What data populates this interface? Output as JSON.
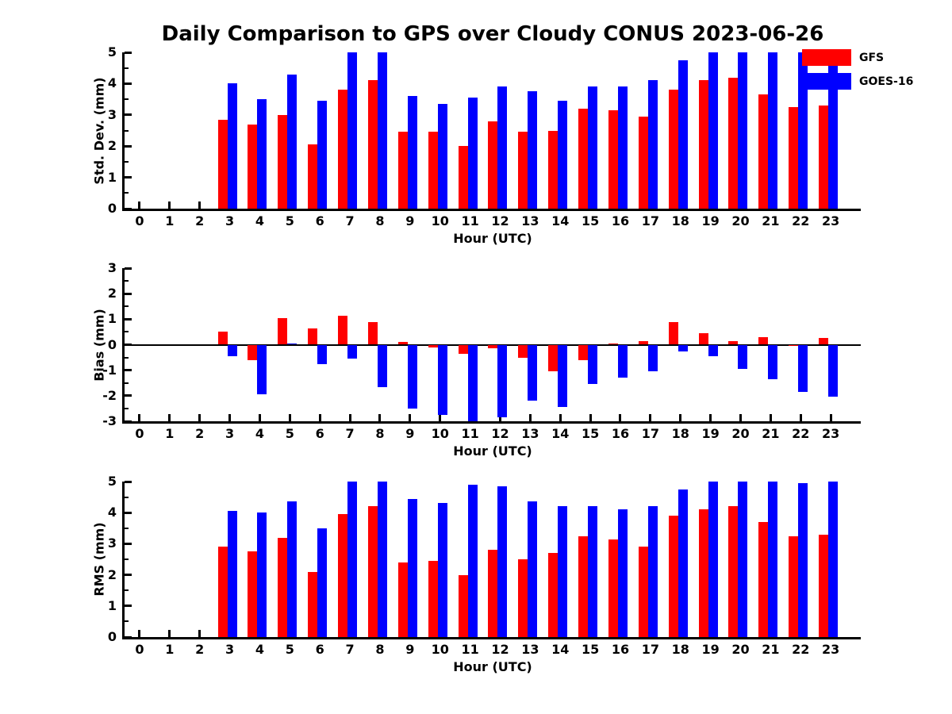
{
  "title": "Daily Comparison to GPS over Cloudy CONUS 2023-06-26",
  "legend": {
    "items": [
      {
        "label": "GFS",
        "color": "#ff0000"
      },
      {
        "label": "GOES-16",
        "color": "#0000ff"
      }
    ]
  },
  "colors": {
    "gfs": "#ff0000",
    "goes16": "#0000ff",
    "axis": "#000000",
    "background": "#ffffff"
  },
  "chart_data": [
    {
      "type": "bar",
      "panel": "std_dev",
      "ylabel": "Std. Dev. (mm)",
      "xlabel": "Hour (UTC)",
      "ylim": [
        0,
        5
      ],
      "yticks": [
        0,
        1,
        2,
        3,
        4,
        5
      ],
      "grid": false,
      "legend_position": "upper-right-outside-plot",
      "categories": [
        0,
        1,
        2,
        3,
        4,
        5,
        6,
        7,
        8,
        9,
        10,
        11,
        12,
        13,
        14,
        15,
        16,
        17,
        18,
        19,
        20,
        21,
        22,
        23
      ],
      "series": [
        {
          "name": "GFS",
          "color": "#ff0000",
          "values": [
            null,
            null,
            null,
            2.85,
            2.7,
            3.0,
            2.05,
            3.8,
            4.1,
            2.45,
            2.45,
            2.0,
            2.8,
            2.45,
            2.5,
            3.2,
            3.15,
            2.95,
            3.8,
            4.1,
            4.2,
            3.65,
            3.25,
            3.3
          ]
        },
        {
          "name": "GOES-16",
          "color": "#0000ff",
          "values": [
            null,
            null,
            null,
            4.0,
            3.5,
            4.3,
            3.45,
            5.0,
            5.0,
            3.6,
            3.35,
            3.55,
            3.9,
            3.75,
            3.45,
            3.9,
            3.9,
            4.1,
            4.75,
            5.0,
            5.0,
            5.0,
            5.0,
            5.0
          ]
        }
      ]
    },
    {
      "type": "bar",
      "panel": "bias",
      "ylabel": "Bias (mm)",
      "xlabel": "Hour (UTC)",
      "ylim": [
        -3,
        3
      ],
      "yticks": [
        3,
        2,
        1,
        0,
        -1,
        -2,
        -3
      ],
      "grid": false,
      "zero_line": true,
      "categories": [
        0,
        1,
        2,
        3,
        4,
        5,
        6,
        7,
        8,
        9,
        10,
        11,
        12,
        13,
        14,
        15,
        16,
        17,
        18,
        19,
        20,
        21,
        22,
        23
      ],
      "series": [
        {
          "name": "GFS",
          "color": "#ff0000",
          "values": [
            null,
            null,
            null,
            0.5,
            -0.6,
            1.05,
            0.65,
            1.15,
            0.9,
            0.1,
            -0.1,
            -0.35,
            -0.15,
            -0.5,
            -1.05,
            -0.6,
            0.05,
            0.15,
            0.9,
            0.45,
            0.15,
            0.3,
            -0.05,
            0.25
          ]
        },
        {
          "name": "GOES-16",
          "color": "#0000ff",
          "values": [
            null,
            null,
            null,
            -0.45,
            -1.95,
            0.05,
            -0.75,
            -0.55,
            -1.65,
            -2.5,
            -2.75,
            -3.0,
            -2.85,
            -2.2,
            -2.45,
            -1.55,
            -1.3,
            -1.05,
            -0.25,
            -0.45,
            -0.95,
            -1.35,
            -1.85,
            -2.05
          ]
        }
      ]
    },
    {
      "type": "bar",
      "panel": "rms",
      "ylabel": "RMS (mm)",
      "xlabel": "Hour (UTC)",
      "ylim": [
        0,
        5
      ],
      "yticks": [
        0,
        1,
        2,
        3,
        4,
        5
      ],
      "grid": false,
      "categories": [
        0,
        1,
        2,
        3,
        4,
        5,
        6,
        7,
        8,
        9,
        10,
        11,
        12,
        13,
        14,
        15,
        16,
        17,
        18,
        19,
        20,
        21,
        22,
        23
      ],
      "series": [
        {
          "name": "GFS",
          "color": "#ff0000",
          "values": [
            null,
            null,
            null,
            2.9,
            2.75,
            3.2,
            2.1,
            3.95,
            4.2,
            2.4,
            2.45,
            2.0,
            2.8,
            2.5,
            2.7,
            3.25,
            3.15,
            2.9,
            3.9,
            4.1,
            4.2,
            3.7,
            3.25,
            3.3
          ]
        },
        {
          "name": "GOES-16",
          "color": "#0000ff",
          "values": [
            null,
            null,
            null,
            4.05,
            4.0,
            4.35,
            3.5,
            5.0,
            5.0,
            4.45,
            4.3,
            4.9,
            4.85,
            4.35,
            4.2,
            4.2,
            4.1,
            4.2,
            4.75,
            5.0,
            5.0,
            5.0,
            4.95,
            5.0
          ]
        }
      ]
    }
  ]
}
